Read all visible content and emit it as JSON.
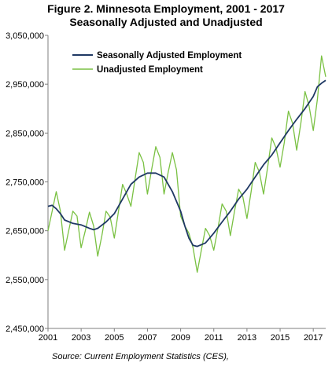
{
  "chart_data": {
    "type": "line",
    "title": "Figure 2. Minnesota Employment, 2001 - 2017",
    "subtitle": "Seasonally Adjusted and Unadjusted",
    "source": "Source:  Current Employment Statistics (CES),",
    "xlabel": "",
    "ylabel": "",
    "xlim": [
      2001,
      2017.75
    ],
    "ylim": [
      2450000,
      3050000
    ],
    "x_ticks": [
      "2001",
      "2003",
      "2005",
      "2007",
      "2009",
      "2011",
      "2013",
      "2015",
      "2017"
    ],
    "y_ticks": [
      "2,450,000",
      "2,550,000",
      "2,650,000",
      "2,750,000",
      "2,850,000",
      "2,950,000",
      "3,050,000"
    ],
    "grid": false,
    "legend_position": "top-left",
    "series": [
      {
        "name": "Seasonally Adjusted Employment",
        "color": "#1f3864",
        "points": [
          [
            2001.0,
            2700000
          ],
          [
            2001.25,
            2702000
          ],
          [
            2001.5,
            2695000
          ],
          [
            2001.75,
            2685000
          ],
          [
            2002.0,
            2672000
          ],
          [
            2002.5,
            2665000
          ],
          [
            2003.0,
            2662000
          ],
          [
            2003.5,
            2655000
          ],
          [
            2003.75,
            2652000
          ],
          [
            2004.0,
            2655000
          ],
          [
            2004.5,
            2668000
          ],
          [
            2005.0,
            2685000
          ],
          [
            2005.5,
            2715000
          ],
          [
            2006.0,
            2745000
          ],
          [
            2006.5,
            2760000
          ],
          [
            2007.0,
            2768000
          ],
          [
            2007.5,
            2768000
          ],
          [
            2008.0,
            2760000
          ],
          [
            2008.5,
            2730000
          ],
          [
            2009.0,
            2690000
          ],
          [
            2009.25,
            2660000
          ],
          [
            2009.5,
            2635000
          ],
          [
            2009.75,
            2620000
          ],
          [
            2010.0,
            2618000
          ],
          [
            2010.5,
            2625000
          ],
          [
            2011.0,
            2645000
          ],
          [
            2011.5,
            2668000
          ],
          [
            2012.0,
            2690000
          ],
          [
            2012.5,
            2715000
          ],
          [
            2013.0,
            2735000
          ],
          [
            2013.5,
            2760000
          ],
          [
            2014.0,
            2785000
          ],
          [
            2014.5,
            2805000
          ],
          [
            2015.0,
            2830000
          ],
          [
            2015.5,
            2855000
          ],
          [
            2016.0,
            2878000
          ],
          [
            2016.5,
            2900000
          ],
          [
            2017.0,
            2925000
          ],
          [
            2017.25,
            2945000
          ],
          [
            2017.5,
            2952000
          ],
          [
            2017.75,
            2958000
          ]
        ]
      },
      {
        "name": "Unadjusted Employment",
        "color": "#7ac143",
        "points": [
          [
            2001.0,
            2650000
          ],
          [
            2001.25,
            2690000
          ],
          [
            2001.5,
            2730000
          ],
          [
            2001.75,
            2690000
          ],
          [
            2002.0,
            2610000
          ],
          [
            2002.25,
            2650000
          ],
          [
            2002.5,
            2690000
          ],
          [
            2002.75,
            2680000
          ],
          [
            2003.0,
            2615000
          ],
          [
            2003.25,
            2650000
          ],
          [
            2003.5,
            2688000
          ],
          [
            2003.75,
            2660000
          ],
          [
            2004.0,
            2598000
          ],
          [
            2004.25,
            2640000
          ],
          [
            2004.5,
            2690000
          ],
          [
            2004.75,
            2678000
          ],
          [
            2005.0,
            2635000
          ],
          [
            2005.25,
            2690000
          ],
          [
            2005.5,
            2745000
          ],
          [
            2005.75,
            2725000
          ],
          [
            2006.0,
            2700000
          ],
          [
            2006.25,
            2755000
          ],
          [
            2006.5,
            2810000
          ],
          [
            2006.75,
            2790000
          ],
          [
            2007.0,
            2725000
          ],
          [
            2007.25,
            2775000
          ],
          [
            2007.5,
            2822000
          ],
          [
            2007.75,
            2800000
          ],
          [
            2008.0,
            2725000
          ],
          [
            2008.25,
            2770000
          ],
          [
            2008.5,
            2810000
          ],
          [
            2008.75,
            2775000
          ],
          [
            2009.0,
            2680000
          ],
          [
            2009.25,
            2660000
          ],
          [
            2009.5,
            2645000
          ],
          [
            2009.75,
            2615000
          ],
          [
            2010.0,
            2565000
          ],
          [
            2010.25,
            2610000
          ],
          [
            2010.5,
            2655000
          ],
          [
            2010.75,
            2640000
          ],
          [
            2011.0,
            2610000
          ],
          [
            2011.25,
            2655000
          ],
          [
            2011.5,
            2705000
          ],
          [
            2011.75,
            2690000
          ],
          [
            2012.0,
            2640000
          ],
          [
            2012.25,
            2690000
          ],
          [
            2012.5,
            2735000
          ],
          [
            2012.75,
            2720000
          ],
          [
            2013.0,
            2675000
          ],
          [
            2013.25,
            2730000
          ],
          [
            2013.5,
            2790000
          ],
          [
            2013.75,
            2770000
          ],
          [
            2014.0,
            2725000
          ],
          [
            2014.25,
            2780000
          ],
          [
            2014.5,
            2840000
          ],
          [
            2014.75,
            2820000
          ],
          [
            2015.0,
            2780000
          ],
          [
            2015.25,
            2830000
          ],
          [
            2015.5,
            2895000
          ],
          [
            2015.75,
            2870000
          ],
          [
            2016.0,
            2815000
          ],
          [
            2016.25,
            2870000
          ],
          [
            2016.5,
            2935000
          ],
          [
            2016.75,
            2905000
          ],
          [
            2017.0,
            2855000
          ],
          [
            2017.25,
            2920000
          ],
          [
            2017.5,
            3008000
          ],
          [
            2017.75,
            2965000
          ]
        ]
      }
    ]
  }
}
